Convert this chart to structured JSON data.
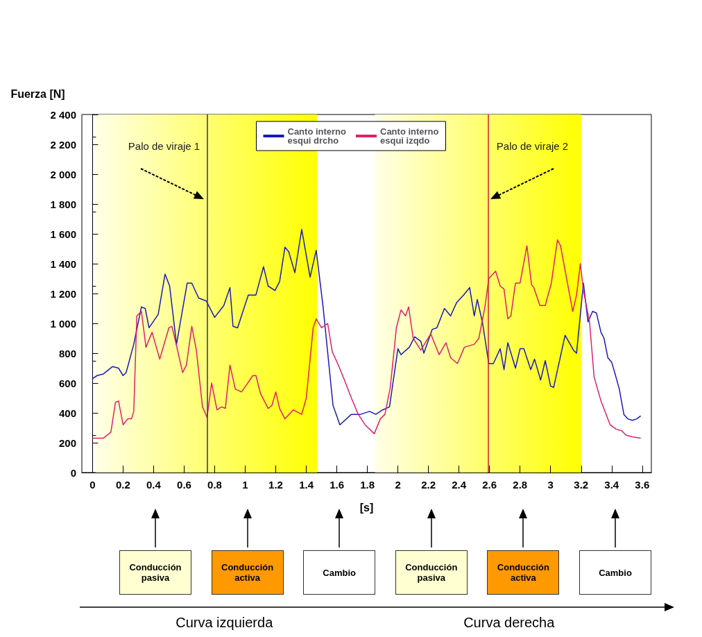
{
  "chart_data": {
    "type": "line",
    "ylabel": "Fuerza [N]",
    "xlabel": "[s]",
    "xlim": [
      -0.07,
      3.66
    ],
    "xticks": [
      0,
      0.2,
      0.4,
      0.6,
      0.8,
      1,
      1.2,
      1.4,
      1.6,
      1.8,
      2,
      2.2,
      2.4,
      2.6,
      2.8,
      3,
      3.2,
      3.4,
      3.6
    ],
    "ylim": [
      0,
      2400
    ],
    "yticks": [
      0,
      200,
      400,
      600,
      800,
      {
        "value": 1000,
        "label": "1 000"
      },
      {
        "value": 1200,
        "label": "1 200"
      },
      {
        "value": 1400,
        "label": "1 400"
      },
      {
        "value": 1600,
        "label": "1 600"
      },
      {
        "value": 1800,
        "label": "1 800"
      },
      {
        "value": 2000,
        "label": "2 000"
      },
      {
        "value": 2200,
        "label": "2 200"
      },
      {
        "value": 2400,
        "label": "2 400"
      }
    ],
    "grid": false,
    "legend": "top",
    "line_style": "solid",
    "series": [
      {
        "name": "Canto interno esqui drcho",
        "color": "#1a1ab8",
        "x": [
          0,
          0.03,
          0.07,
          0.13,
          0.17,
          0.2,
          0.22,
          0.27,
          0.32,
          0.345,
          0.37,
          0.43,
          0.475,
          0.505,
          0.55,
          0.62,
          0.65,
          0.695,
          0.745,
          0.8,
          0.86,
          0.9,
          0.92,
          0.95,
          1.02,
          1.07,
          1.12,
          1.15,
          1.195,
          1.225,
          1.26,
          1.285,
          1.325,
          1.37,
          1.425,
          1.465,
          1.51,
          1.575,
          1.62,
          1.695,
          1.755,
          1.815,
          1.855,
          1.9,
          1.945,
          2,
          2.02,
          2.075,
          2.11,
          2.15,
          2.17,
          2.225,
          2.255,
          2.305,
          2.345,
          2.385,
          2.43,
          2.47,
          2.5,
          2.52,
          2.555,
          2.595,
          2.625,
          2.67,
          2.695,
          2.72,
          2.77,
          2.8,
          2.825,
          2.87,
          2.895,
          2.935,
          2.965,
          3,
          3.02,
          3.095,
          3.15,
          3.17,
          3.195,
          3.215,
          3.245,
          3.275,
          3.3,
          3.33,
          3.35,
          3.375,
          3.4,
          3.42,
          3.45,
          3.48,
          3.505,
          3.535,
          3.565,
          3.59
        ],
        "values": [
          630,
          650,
          660,
          710,
          700,
          650,
          670,
          860,
          1110,
          1100,
          970,
          1060,
          1330,
          1250,
          860,
          1270,
          1270,
          1170,
          1150,
          1040,
          1120,
          1240,
          980,
          970,
          1190,
          1190,
          1380,
          1250,
          1220,
          1280,
          1510,
          1480,
          1340,
          1630,
          1310,
          1490,
          1110,
          450,
          320,
          390,
          390,
          410,
          390,
          420,
          440,
          830,
          790,
          840,
          910,
          880,
          800,
          960,
          970,
          1100,
          1050,
          1140,
          1190,
          1240,
          1050,
          1160,
          1000,
          730,
          730,
          830,
          690,
          870,
          700,
          830,
          830,
          690,
          760,
          620,
          750,
          580,
          570,
          920,
          820,
          800,
          1060,
          1270,
          1010,
          1080,
          1070,
          940,
          900,
          770,
          740,
          670,
          560,
          390,
          360,
          350,
          360,
          380
        ]
      },
      {
        "name": "Canto interno esqui izqdo",
        "color": "#e0206a",
        "x": [
          0,
          0.07,
          0.12,
          0.15,
          0.17,
          0.2,
          0.23,
          0.255,
          0.27,
          0.29,
          0.32,
          0.35,
          0.39,
          0.44,
          0.5,
          0.52,
          0.55,
          0.59,
          0.615,
          0.65,
          0.68,
          0.72,
          0.75,
          0.78,
          0.815,
          0.845,
          0.87,
          0.9,
          0.935,
          0.975,
          1.01,
          1.05,
          1.07,
          1.1,
          1.15,
          1.175,
          1.2,
          1.225,
          1.26,
          1.315,
          1.37,
          1.4,
          1.445,
          1.465,
          1.5,
          1.54,
          1.57,
          1.61,
          1.65,
          1.695,
          1.74,
          1.785,
          1.845,
          1.885,
          1.915,
          1.95,
          1.99,
          2.02,
          2.05,
          2.07,
          2.1,
          2.15,
          2.215,
          2.27,
          2.315,
          2.345,
          2.39,
          2.435,
          2.5,
          2.53,
          2.57,
          2.595,
          2.64,
          2.67,
          2.695,
          2.72,
          2.74,
          2.77,
          2.8,
          2.845,
          2.875,
          2.89,
          2.93,
          2.965,
          3.005,
          3.045,
          3.065,
          3.145,
          3.17,
          3.195,
          3.215,
          3.255,
          3.285,
          3.33,
          3.36,
          3.39,
          3.43,
          3.465,
          3.495,
          3.535,
          3.59
        ],
        "values": [
          230,
          230,
          270,
          470,
          480,
          320,
          360,
          360,
          410,
          1050,
          1080,
          840,
          940,
          760,
          970,
          980,
          850,
          670,
          720,
          980,
          820,
          440,
          370,
          600,
          420,
          440,
          430,
          720,
          560,
          540,
          590,
          650,
          650,
          530,
          430,
          450,
          540,
          430,
          360,
          420,
          390,
          500,
          970,
          1030,
          970,
          1000,
          810,
          720,
          620,
          500,
          390,
          320,
          260,
          360,
          390,
          570,
          970,
          1090,
          1050,
          1110,
          900,
          820,
          930,
          790,
          870,
          770,
          730,
          840,
          860,
          900,
          1110,
          1300,
          1350,
          1250,
          1230,
          1030,
          1050,
          1270,
          1270,
          1520,
          1260,
          1240,
          1120,
          1120,
          1270,
          1560,
          1520,
          1080,
          1190,
          1400,
          1220,
          1010,
          640,
          480,
          400,
          320,
          290,
          280,
          250,
          240,
          230
        ]
      }
    ],
    "ref_lines": [
      {
        "axis": "x",
        "value": 0.75,
        "label": "Palo de viraje 1",
        "color": "#2a2aa0"
      },
      {
        "axis": "x",
        "value": 2.59,
        "label": "Palo de viraje 2",
        "color": "#d02030"
      }
    ],
    "bands": [
      {
        "axis": "x",
        "from": 0.02,
        "to": 1.47,
        "color": "#ffff00"
      },
      {
        "axis": "x",
        "from": 1.85,
        "to": 3.2,
        "color": "#ffff00"
      }
    ],
    "annotations": [
      "Conducción pasiva",
      "Conducción activa",
      "Cambio",
      "Conducción pasiva",
      "Conducción activa",
      "Cambio",
      "Curva izquierda",
      "Curva derecha"
    ]
  }
}
